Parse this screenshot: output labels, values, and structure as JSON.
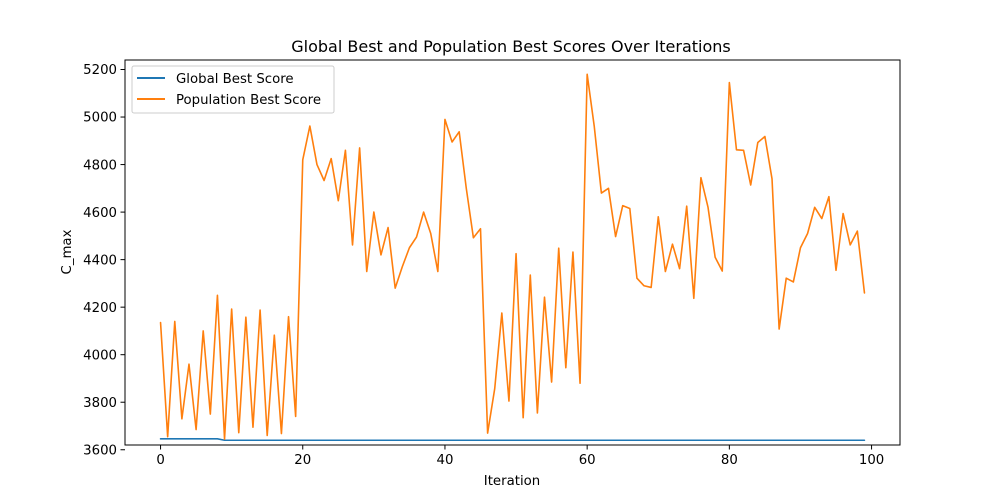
{
  "chart_data": {
    "type": "line",
    "title": "Global Best and Population Best Scores Over Iterations",
    "xlabel": "Iteration",
    "ylabel": "C_max",
    "xlim": [
      -5,
      104
    ],
    "ylim": [
      3620,
      5240
    ],
    "xticks": [
      0,
      20,
      40,
      60,
      80,
      100
    ],
    "yticks": [
      3600,
      3800,
      4000,
      4200,
      4400,
      4600,
      4800,
      5000,
      5200
    ],
    "grid": false,
    "legend_position": "top-left",
    "series": [
      {
        "name": "Global Best Score",
        "color": "#1f77b4",
        "values": [
          3646,
          3646,
          3646,
          3646,
          3646,
          3646,
          3646,
          3646,
          3646,
          3640,
          3640,
          3640,
          3640,
          3640,
          3640,
          3640,
          3640,
          3640,
          3640,
          3640,
          3640,
          3640,
          3640,
          3640,
          3640,
          3640,
          3640,
          3640,
          3640,
          3640,
          3640,
          3640,
          3640,
          3640,
          3640,
          3640,
          3640,
          3640,
          3640,
          3640,
          3640,
          3640,
          3640,
          3640,
          3640,
          3640,
          3640,
          3640,
          3640,
          3640,
          3640,
          3640,
          3640,
          3640,
          3640,
          3640,
          3640,
          3640,
          3640,
          3640,
          3640,
          3640,
          3640,
          3640,
          3640,
          3640,
          3640,
          3640,
          3640,
          3640,
          3640,
          3640,
          3640,
          3640,
          3640,
          3640,
          3640,
          3640,
          3640,
          3640,
          3640,
          3640,
          3640,
          3640,
          3640,
          3640,
          3640,
          3640,
          3640,
          3640,
          3640,
          3640,
          3640,
          3640,
          3640,
          3640,
          3640,
          3640,
          3640,
          3640
        ]
      },
      {
        "name": "Population Best Score",
        "color": "#ff7f0e",
        "values": [
          4135,
          3655,
          4140,
          3730,
          3960,
          3685,
          4100,
          3750,
          4250,
          3645,
          4192,
          3672,
          4158,
          3695,
          4188,
          3660,
          4082,
          3668,
          4160,
          3740,
          4820,
          4962,
          4800,
          4733,
          4825,
          4648,
          4860,
          4462,
          4870,
          4350,
          4600,
          4420,
          4535,
          4280,
          4370,
          4450,
          4495,
          4600,
          4510,
          4350,
          4990,
          4895,
          4938,
          4700,
          4492,
          4530,
          3670,
          3857,
          4175,
          3805,
          4425,
          3735,
          4335,
          3755,
          4242,
          3885,
          4448,
          3945,
          4432,
          3880,
          5180,
          4960,
          4680,
          4700,
          4497,
          4627,
          4615,
          4322,
          4290,
          4283,
          4580,
          4350,
          4465,
          4362,
          4625,
          4237,
          4745,
          4620,
          4410,
          4352,
          5145,
          4862,
          4860,
          4714,
          4893,
          4918,
          4740,
          4108,
          4322,
          4306,
          4450,
          4510,
          4620,
          4573,
          4665,
          4355,
          4594,
          4462,
          4520,
          4260
        ]
      }
    ]
  }
}
